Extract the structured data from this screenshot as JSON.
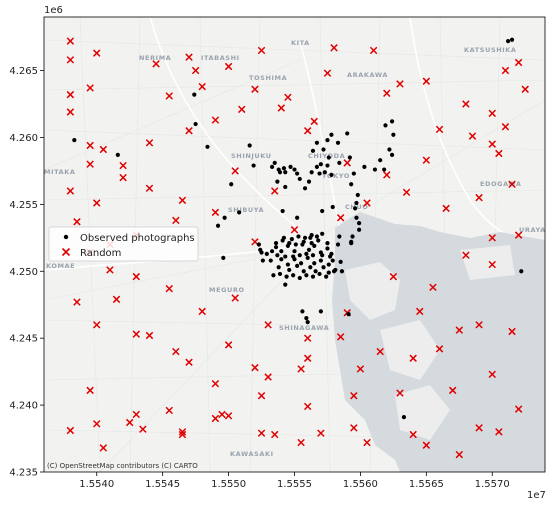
{
  "chart_data": {
    "type": "scatter",
    "x_offset_label": "1e7",
    "y_offset_label": "1e6",
    "xlim": [
      1.5536,
      1.5574
    ],
    "ylim": [
      4.235,
      4.269
    ],
    "x_ticks": [
      {
        "value": 1.554,
        "label": "1.5540"
      },
      {
        "value": 1.5545,
        "label": "1.5545"
      },
      {
        "value": 1.555,
        "label": "1.5550"
      },
      {
        "value": 1.5555,
        "label": "1.5555"
      },
      {
        "value": 1.556,
        "label": "1.5560"
      },
      {
        "value": 1.5565,
        "label": "1.5565"
      },
      {
        "value": 1.557,
        "label": "1.5570"
      }
    ],
    "y_ticks": [
      {
        "value": 4.235,
        "label": "4.235"
      },
      {
        "value": 4.24,
        "label": "4.240"
      },
      {
        "value": 4.245,
        "label": "4.245"
      },
      {
        "value": 4.25,
        "label": "4.250"
      },
      {
        "value": 4.255,
        "label": "4.255"
      },
      {
        "value": 4.26,
        "label": "4.260"
      },
      {
        "value": 4.265,
        "label": "4.265"
      }
    ],
    "legend": {
      "placement": "center-left"
    },
    "attribution": "(C) OpenStreetMap contributors (C) CARTO",
    "basemap_labels": [
      "NERIMA",
      "KITA",
      "KATSUSHIKA",
      "TOSHIMA",
      "ARAKAWA",
      "ITABASHI",
      "SHINJUKU",
      "CHIYODA",
      "MITAKA",
      "TOKYO",
      "EDOGAWA",
      "SHIBUYA",
      "CHUO",
      "URAYASU",
      "KOMAE",
      "MEGURO",
      "SHINAGAWA",
      "KAWASAKI"
    ],
    "series": [
      {
        "name": "Observed photographs",
        "marker": "circle",
        "color": "#000000",
        "x": [
          1.55416,
          1.55383,
          1.55474,
          1.55475,
          1.55484,
          1.55516,
          1.55519,
          1.55533,
          1.55535,
          1.55538,
          1.55539,
          1.55542,
          1.55547,
          1.55543,
          1.5555,
          1.55552,
          1.55537,
          1.55543,
          1.55554,
          1.55558,
          1.55561,
          1.55563,
          1.55567,
          1.55569,
          1.5557,
          1.55573,
          1.55575,
          1.55578,
          1.55576,
          1.55564,
          1.55567,
          1.55572,
          1.55575,
          1.55578,
          1.55583,
          1.5559,
          1.55592,
          1.55584,
          1.55593,
          1.55595,
          1.55603,
          1.55619,
          1.55624,
          1.55625,
          1.55622,
          1.55615,
          1.55618,
          1.55598,
          1.55597,
          1.55596,
          1.55597,
          1.55599,
          1.55599,
          1.55593,
          1.55594,
          1.55541,
          1.55552,
          1.55562,
          1.55508,
          1.55497,
          1.55523,
          1.55496,
          1.55492,
          1.55502,
          1.55524,
          1.55526,
          1.55543,
          1.55556,
          1.5557,
          1.55591,
          1.55533,
          1.55525,
          1.55529,
          1.55536,
          1.5554,
          1.55545,
          1.5555,
          1.55556,
          1.55561,
          1.55565,
          1.5557,
          1.55575,
          1.55578,
          1.55579,
          1.55576,
          1.5557,
          1.55565,
          1.5556,
          1.55555,
          1.5555,
          1.55545,
          1.5554,
          1.55532,
          1.55538,
          1.55546,
          1.55552,
          1.55557,
          1.55562,
          1.55566,
          1.55572,
          1.55576,
          1.55581,
          1.55585,
          1.55577,
          1.55571,
          1.55564,
          1.55559,
          1.55554,
          1.55549,
          1.55543,
          1.55537,
          1.55534,
          1.55539,
          1.55544,
          1.55549,
          1.55554,
          1.55559,
          1.55564,
          1.55569,
          1.55574,
          1.5558,
          1.55586,
          1.55583,
          1.55575,
          1.55568,
          1.55563,
          1.55557,
          1.55551,
          1.55546,
          1.55541,
          1.55536,
          1.55542,
          1.55548,
          1.55553,
          1.55558,
          1.55563,
          1.55567,
          1.55571,
          1.55584,
          1.55593,
          1.55571,
          1.55579,
          1.55559,
          1.5556,
          1.55712,
          1.55715,
          1.55633,
          1.55722,
          1.55611,
          1.55624
        ],
        "y": [
          4.2587,
          4.2598,
          4.2632,
          4.261,
          4.2593,
          4.2594,
          4.2579,
          4.2578,
          4.2581,
          4.2576,
          4.2574,
          4.2577,
          4.2578,
          4.2574,
          4.2576,
          4.2573,
          4.2567,
          4.2563,
          4.2569,
          4.2562,
          4.2567,
          4.2574,
          4.2578,
          4.2573,
          4.258,
          4.2574,
          4.2579,
          4.2572,
          4.2585,
          4.259,
          4.2596,
          4.2591,
          4.2598,
          4.2602,
          4.2596,
          4.2603,
          4.2585,
          4.2581,
          4.2565,
          4.2573,
          4.2578,
          4.2609,
          4.2612,
          4.2602,
          4.2591,
          4.2583,
          4.2576,
          4.2557,
          4.2551,
          4.2547,
          4.254,
          4.2536,
          4.2531,
          4.2521,
          4.2526,
          4.2545,
          4.254,
          4.2525,
          4.2544,
          4.254,
          4.252,
          4.251,
          4.2534,
          4.2565,
          4.2516,
          4.2508,
          4.249,
          4.247,
          4.247,
          4.2468,
          4.2515,
          4.2514,
          4.2513,
          4.2518,
          4.2515,
          4.2519,
          4.2515,
          4.252,
          4.2516,
          4.2519,
          4.2514,
          4.2517,
          4.2513,
          4.2508,
          4.2505,
          4.2508,
          4.2506,
          4.251,
          4.2506,
          4.2509,
          4.2505,
          4.2509,
          4.2508,
          4.2503,
          4.2501,
          4.2504,
          4.25,
          4.2503,
          4.25,
          4.2503,
          4.2499,
          4.2501,
          4.2507,
          4.2511,
          4.2512,
          4.2512,
          4.2513,
          4.2512,
          4.2511,
          4.2511,
          4.2512,
          4.2497,
          4.2498,
          4.2496,
          4.2497,
          4.2495,
          4.2497,
          4.2496,
          4.2498,
          4.2496,
          4.25,
          4.25,
          4.252,
          4.2521,
          4.2523,
          4.2521,
          4.2522,
          4.252,
          4.2521,
          4.2523,
          4.2521,
          4.2525,
          4.2524,
          4.2526,
          4.2525,
          4.2527,
          4.2526,
          4.2528,
          4.2526,
          4.2522,
          4.2545,
          4.2548,
          4.2465,
          4.2462,
          4.2672,
          4.2673,
          4.2391,
          4.25,
          4.2576,
          4.2587
        ]
      },
      {
        "name": "Random",
        "marker": "x",
        "color": "#e00000",
        "x": [
          1.5538,
          1.5538,
          1.554,
          1.5538,
          1.5538,
          1.55395,
          1.55395,
          1.55445,
          1.55455,
          1.5547,
          1.55475,
          1.5548,
          1.555,
          1.55525,
          1.5552,
          1.55545,
          1.55575,
          1.5558,
          1.5561,
          1.5563,
          1.5565,
          1.557,
          1.5571,
          1.5572,
          1.55725,
          1.5571,
          1.557,
          1.5568,
          1.5566,
          1.5562,
          1.55565,
          1.5554,
          1.5551,
          1.5549,
          1.5547,
          1.5544,
          1.5542,
          1.55405,
          1.55395,
          1.5538,
          1.554,
          1.5542,
          1.5544,
          1.55465,
          1.55505,
          1.55535,
          1.5556,
          1.5559,
          1.5562,
          1.5565,
          1.55685,
          1.55705,
          1.55715,
          1.5569,
          1.55665,
          1.55635,
          1.55605,
          1.55585,
          1.5555,
          1.5552,
          1.5549,
          1.5546,
          1.5543,
          1.5541,
          1.55395,
          1.55385,
          1.5541,
          1.5543,
          1.55455,
          1.5548,
          1.55505,
          1.5553,
          1.5556,
          1.5559,
          1.55625,
          1.55655,
          1.5568,
          1.557,
          1.5572,
          1.557,
          1.55675,
          1.55645,
          1.55615,
          1.55585,
          1.55555,
          1.5552,
          1.5549,
          1.5546,
          1.5543,
          1.554,
          1.55385,
          1.55415,
          1.5544,
          1.5547,
          1.555,
          1.5553,
          1.5556,
          1.556,
          1.5564,
          1.5567,
          1.557,
          1.55715,
          1.5569,
          1.5566,
          1.5563,
          1.55595,
          1.5556,
          1.55525,
          1.5549,
          1.55455,
          1.55425,
          1.55395,
          1.5538,
          1.55405,
          1.55435,
          1.55465,
          1.55495,
          1.55525,
          1.55555,
          1.55595,
          1.5565,
          1.5569,
          1.5572,
          1.55705,
          1.55675,
          1.5564,
          1.55605,
          1.5557,
          1.55535,
          1.555,
          1.55465,
          1.5543,
          1.554
        ],
        "y": [
          4.2672,
          4.2658,
          4.2663,
          4.2632,
          4.2619,
          4.2637,
          4.2594,
          4.2655,
          4.2631,
          4.266,
          4.265,
          4.2638,
          4.2653,
          4.2665,
          4.2636,
          4.263,
          4.2648,
          4.2667,
          4.2665,
          4.264,
          4.2642,
          4.2618,
          4.265,
          4.2656,
          4.2636,
          4.2608,
          4.2595,
          4.2625,
          4.2606,
          4.2633,
          4.2612,
          4.2622,
          4.2621,
          4.2613,
          4.2605,
          4.2596,
          4.2579,
          4.2591,
          4.258,
          4.256,
          4.2551,
          4.257,
          4.2562,
          4.2553,
          4.2575,
          4.256,
          4.2605,
          4.2581,
          4.2572,
          4.2583,
          4.2601,
          4.2588,
          4.2565,
          4.2555,
          4.2547,
          4.2559,
          4.2551,
          4.254,
          4.2531,
          4.2522,
          4.2544,
          4.2538,
          4.2527,
          4.252,
          4.2514,
          4.2537,
          4.2501,
          4.2496,
          4.2487,
          4.247,
          4.248,
          4.246,
          4.245,
          4.2469,
          4.2496,
          4.2488,
          4.2512,
          4.2525,
          4.2527,
          4.2505,
          4.2456,
          4.247,
          4.244,
          4.2451,
          4.2427,
          4.2428,
          4.2416,
          4.244,
          4.2453,
          4.246,
          4.2477,
          4.2479,
          4.2452,
          4.2432,
          4.2445,
          4.2421,
          4.2435,
          4.2427,
          4.2435,
          4.2411,
          4.2423,
          4.2455,
          4.246,
          4.2442,
          4.2409,
          4.2407,
          4.2399,
          4.2407,
          4.239,
          4.2396,
          4.2387,
          4.2411,
          4.2381,
          4.2368,
          4.2382,
          4.2378,
          4.2393,
          4.2379,
          4.2372,
          4.2383,
          4.237,
          4.2383,
          4.2397,
          4.238,
          4.2363,
          4.2378,
          4.2372,
          4.2379,
          4.2378,
          4.2392,
          4.238,
          4.2393,
          4.2386
        ]
      }
    ]
  }
}
